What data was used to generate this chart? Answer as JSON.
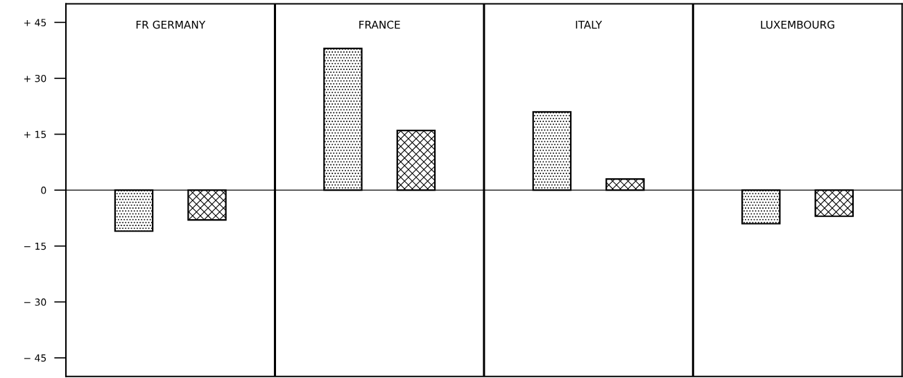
{
  "chart_data": {
    "type": "bar",
    "categories": [
      "FR GERMANY",
      "FRANCE",
      "ITALY",
      "LUXEMBOURG"
    ],
    "series": [
      {
        "color": "#000000",
        "values": [
          -11,
          38,
          21,
          -9
        ]
      },
      {
        "color": "#000000",
        "values": [
          -8,
          16,
          3,
          -7
        ]
      }
    ],
    "ylim": [
      -50,
      50
    ],
    "yticks": [
      {
        "value": 45,
        "label": "+ 45"
      },
      {
        "value": 30,
        "label": "+ 30"
      },
      {
        "value": 15,
        "label": "+ 15"
      },
      0,
      {
        "value": -15,
        "label": "− 15"
      },
      {
        "value": -30,
        "label": "− 30"
      },
      {
        "value": -45,
        "label": "− 45"
      }
    ],
    "ref_lines": [
      {
        "axis": "y",
        "value": 0
      }
    ],
    "grid": false,
    "legend": false
  }
}
